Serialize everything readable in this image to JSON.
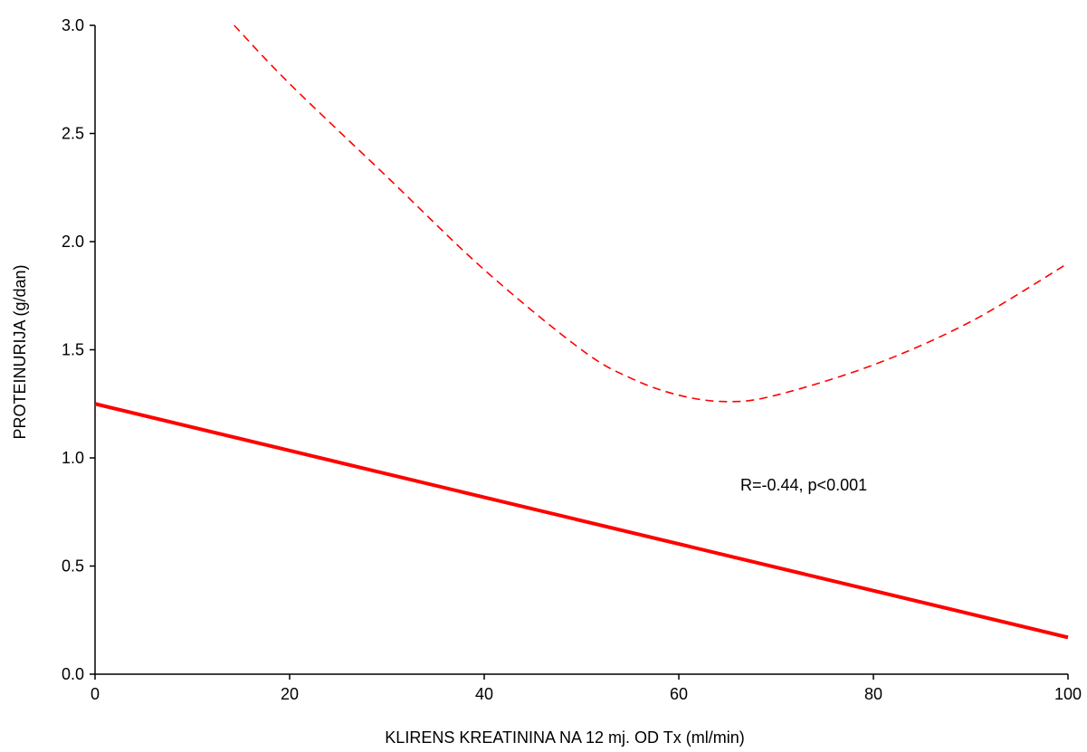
{
  "chart_data": {
    "type": "line",
    "title": "",
    "xlabel": "KLIRENS KREATININA NA 12 mj. OD Tx (ml/min)",
    "ylabel": "PROTEINURIJA (g/dan)",
    "xlim": [
      0,
      100
    ],
    "ylim": [
      0,
      3.0
    ],
    "xticks": [
      0,
      20,
      40,
      60,
      80,
      100
    ],
    "xtick_labels": [
      "0",
      "20",
      "40",
      "60",
      "80",
      "100"
    ],
    "yticks": [
      0,
      0.5,
      1.0,
      1.5,
      2.0,
      2.5,
      3.0
    ],
    "ytick_labels": [
      "0.0",
      "0.5",
      "1.0",
      "1.5",
      "2.0",
      "2.5",
      "3.0"
    ],
    "grid": false,
    "legend": "none",
    "annotation": "R=-0.44, p<0.001",
    "series": [
      {
        "style": "solid",
        "color": "#ff0000",
        "x": [
          0,
          100
        ],
        "y": [
          1.25,
          0.17
        ]
      },
      {
        "style": "dashed",
        "color": "#ff0000",
        "x": [
          14.3,
          20,
          30,
          40,
          50,
          55,
          60,
          65,
          70,
          80,
          90,
          100
        ],
        "y": [
          3.0,
          2.73,
          2.3,
          1.87,
          1.5,
          1.37,
          1.29,
          1.26,
          1.29,
          1.43,
          1.63,
          1.9
        ]
      }
    ]
  }
}
